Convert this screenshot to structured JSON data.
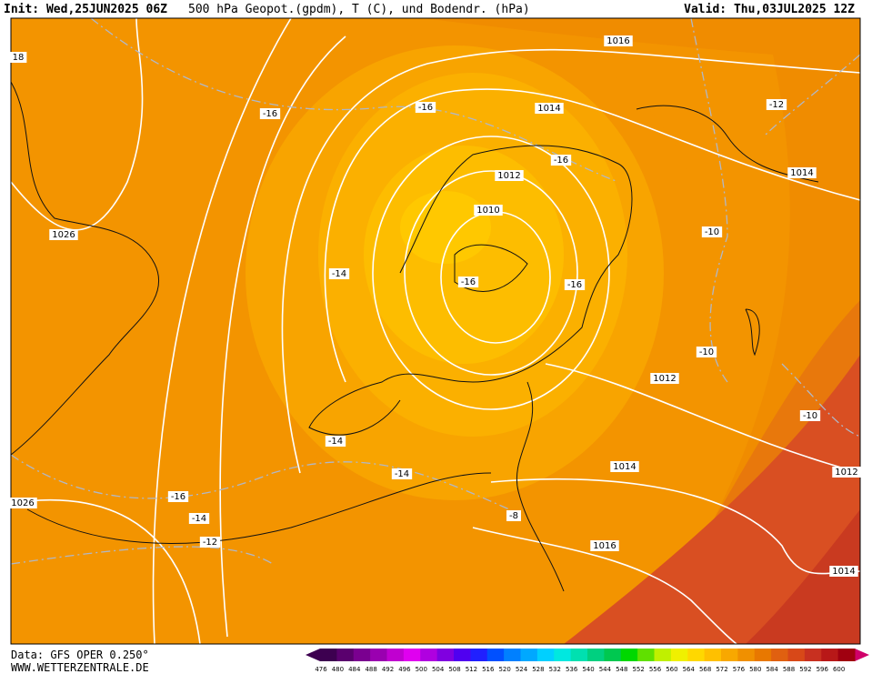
{
  "header": {
    "init": "Init: Wed,25JUN2025 06Z",
    "title": "500 hPa Geopot.(gpdm), T (C), und Bodendr. (hPa)",
    "valid": "Valid: Thu,03JUL2025 12Z"
  },
  "map": {
    "isobar_labels": [
      "1016",
      "1014",
      "1012",
      "1010",
      "1026",
      "1014",
      "1012",
      "1012",
      "1014",
      "1016",
      "1014",
      "1026",
      "18"
    ],
    "temperature_labels": [
      "-16",
      "-16",
      "-16",
      "-10",
      "-12",
      "-14",
      "-16",
      "-16",
      "-10",
      "-10",
      "-14",
      "-14",
      "-16",
      "-14",
      "-12",
      "-8"
    ]
  },
  "colorbar": {
    "ticks": [
      476,
      480,
      484,
      488,
      492,
      496,
      500,
      504,
      508,
      512,
      516,
      520,
      524,
      528,
      532,
      536,
      540,
      544,
      548,
      552,
      556,
      560,
      564,
      568,
      572,
      576,
      580,
      584,
      588,
      592,
      596,
      600
    ],
    "colors": [
      "#3d0050",
      "#5a006e",
      "#7a0090",
      "#9a00b0",
      "#c000d0",
      "#e000f0",
      "#b000e0",
      "#8000e0",
      "#5000f0",
      "#2020ff",
      "#0050ff",
      "#0080ff",
      "#00a8ff",
      "#00d0ff",
      "#00e8e0",
      "#00e0b0",
      "#00d080",
      "#00c850",
      "#00d800",
      "#60e000",
      "#c0f000",
      "#f0f000",
      "#ffd800",
      "#ffc000",
      "#f8a800",
      "#f09000",
      "#e87800",
      "#e06010",
      "#d84818",
      "#c83020",
      "#b81818",
      "#a00010"
    ]
  },
  "footer": {
    "data": "Data: GFS OPER 0.250°",
    "site": "WWW.WETTERZENTRALE.DE"
  }
}
